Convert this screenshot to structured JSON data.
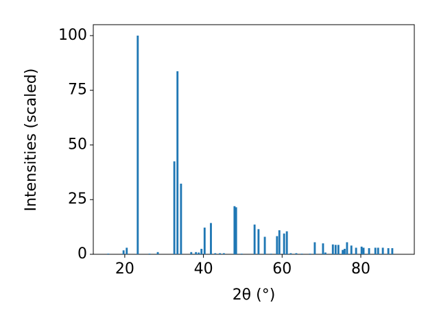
{
  "chart_data": {
    "type": "bar",
    "xlabel": "2θ (°)",
    "ylabel": "Intensities (scaled)",
    "x": [
      15.8,
      19.7,
      20.5,
      23.3,
      26.3,
      28.4,
      32.6,
      33.4,
      34.3,
      36.9,
      38.1,
      38.8,
      39.5,
      40.3,
      41.9,
      43.0,
      44.2,
      45.2,
      47.9,
      48.3,
      49.7,
      53.0,
      54.0,
      55.6,
      57.2,
      58.7,
      59.3,
      60.5,
      61.2,
      62.2,
      63.6,
      65.0,
      67.1,
      68.3,
      70.4,
      71.0,
      72.9,
      73.6,
      74.3,
      75.4,
      75.9,
      76.5,
      77.6,
      78.8,
      80.2,
      80.7,
      82.1,
      83.7,
      84.4,
      85.6,
      87.0,
      88.0
    ],
    "values": [
      0.3,
      1.8,
      3,
      100,
      0.3,
      1,
      42.5,
      83.7,
      32.3,
      1,
      1,
      0.8,
      2.5,
      12.2,
      14.3,
      0.5,
      0.5,
      0.5,
      22,
      21.5,
      0.3,
      13.6,
      11.5,
      8,
      0.3,
      8.3,
      11,
      9.5,
      10.5,
      0.5,
      0.5,
      0.3,
      0.3,
      5.5,
      5,
      0.8,
      4.5,
      4.3,
      4.3,
      2,
      2.5,
      5.5,
      4,
      3,
      3.5,
      3,
      2.8,
      3,
      3,
      3,
      2.8,
      2.8
    ],
    "color": "#1f77b4",
    "xlim": [
      12,
      93.6
    ],
    "ylim": [
      0,
      105
    ],
    "xticks": [
      20,
      40,
      60,
      80
    ],
    "yticks": [
      0,
      25,
      50,
      75,
      100
    ]
  }
}
